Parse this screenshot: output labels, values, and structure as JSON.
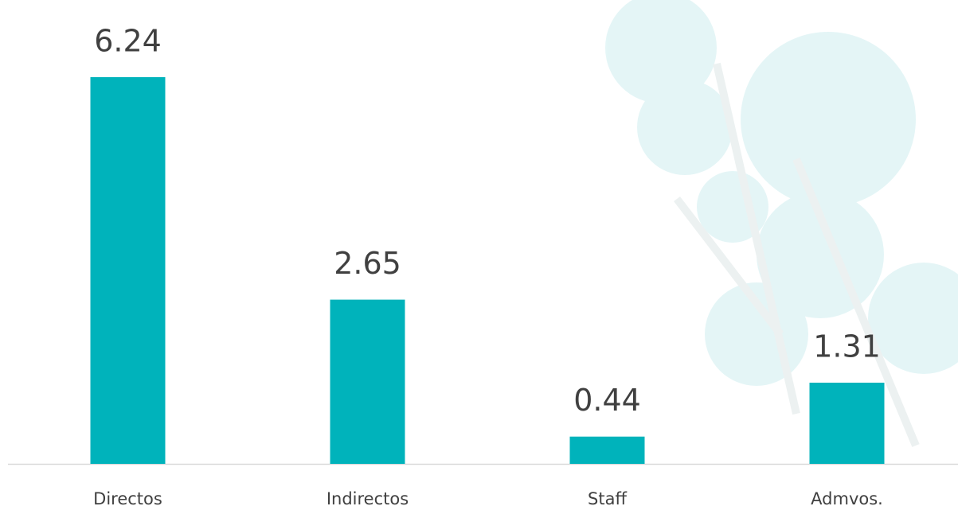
{
  "chart_data": {
    "type": "bar",
    "categories": [
      "Directos",
      "Indirectos",
      "Staff",
      "Admvos."
    ],
    "values": [
      6.24,
      2.65,
      0.44,
      1.31
    ],
    "color": "#00b3bb"
  }
}
